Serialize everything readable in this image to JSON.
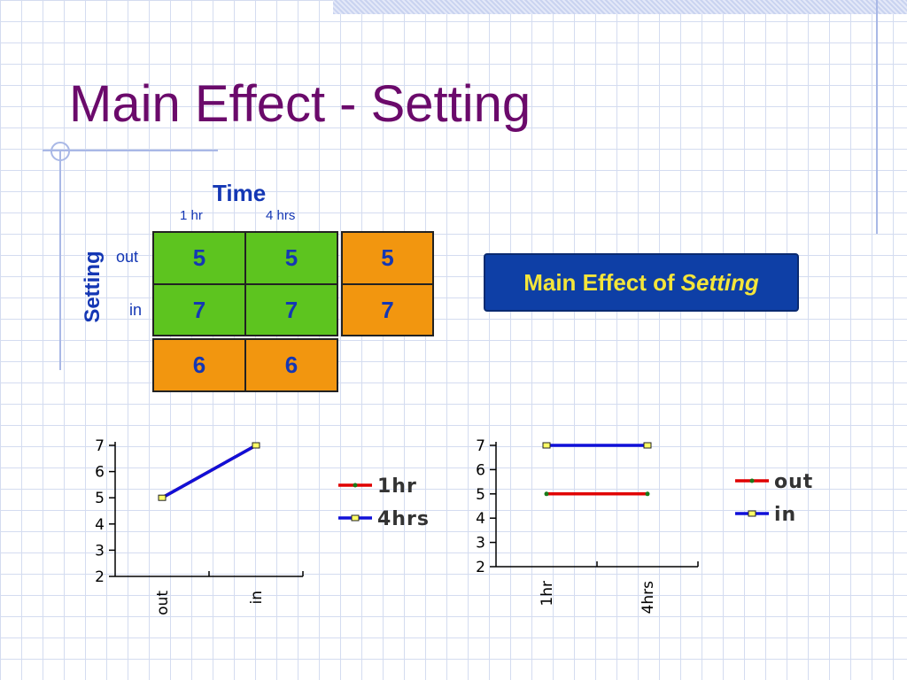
{
  "slide": {
    "title": "Main Effect - Setting"
  },
  "table": {
    "column_header": "Time",
    "row_header": "Setting",
    "columns": [
      "1 hr",
      "4 hrs"
    ],
    "rows": [
      "out",
      "in"
    ],
    "cells": [
      [
        "5",
        "5"
      ],
      [
        "7",
        "7"
      ]
    ],
    "row_means": [
      "5",
      "7"
    ],
    "column_means": [
      "6",
      "6"
    ]
  },
  "callout": {
    "prefix": "Main Effect of",
    "emphasis": "Setting"
  },
  "colors": {
    "title": "#6b0a6b",
    "table_text": "#1437b4",
    "cell_green": "#5dc41f",
    "cell_orange": "#f2960f",
    "callout_bg": "#0e3fa6",
    "callout_text": "#f4e53a",
    "series_red": "#e00000",
    "series_blue": "#1010d8"
  },
  "chart_data": [
    {
      "type": "line",
      "categories": [
        "out",
        "in"
      ],
      "series": [
        {
          "name": "1hr",
          "values": [
            5,
            7
          ],
          "color": "#e00000"
        },
        {
          "name": "4hrs",
          "values": [
            5,
            7
          ],
          "color": "#1010d8"
        }
      ],
      "ylim": [
        2,
        7
      ],
      "yticks": [
        2,
        3,
        4,
        5,
        6,
        7
      ],
      "legend": "right"
    },
    {
      "type": "line",
      "categories": [
        "1hr",
        "4hrs"
      ],
      "series": [
        {
          "name": "out",
          "values": [
            5,
            5
          ],
          "color": "#e00000"
        },
        {
          "name": "in",
          "values": [
            7,
            7
          ],
          "color": "#1010d8"
        }
      ],
      "ylim": [
        2,
        7
      ],
      "yticks": [
        2,
        3,
        4,
        5,
        6,
        7
      ],
      "legend": "right"
    }
  ]
}
